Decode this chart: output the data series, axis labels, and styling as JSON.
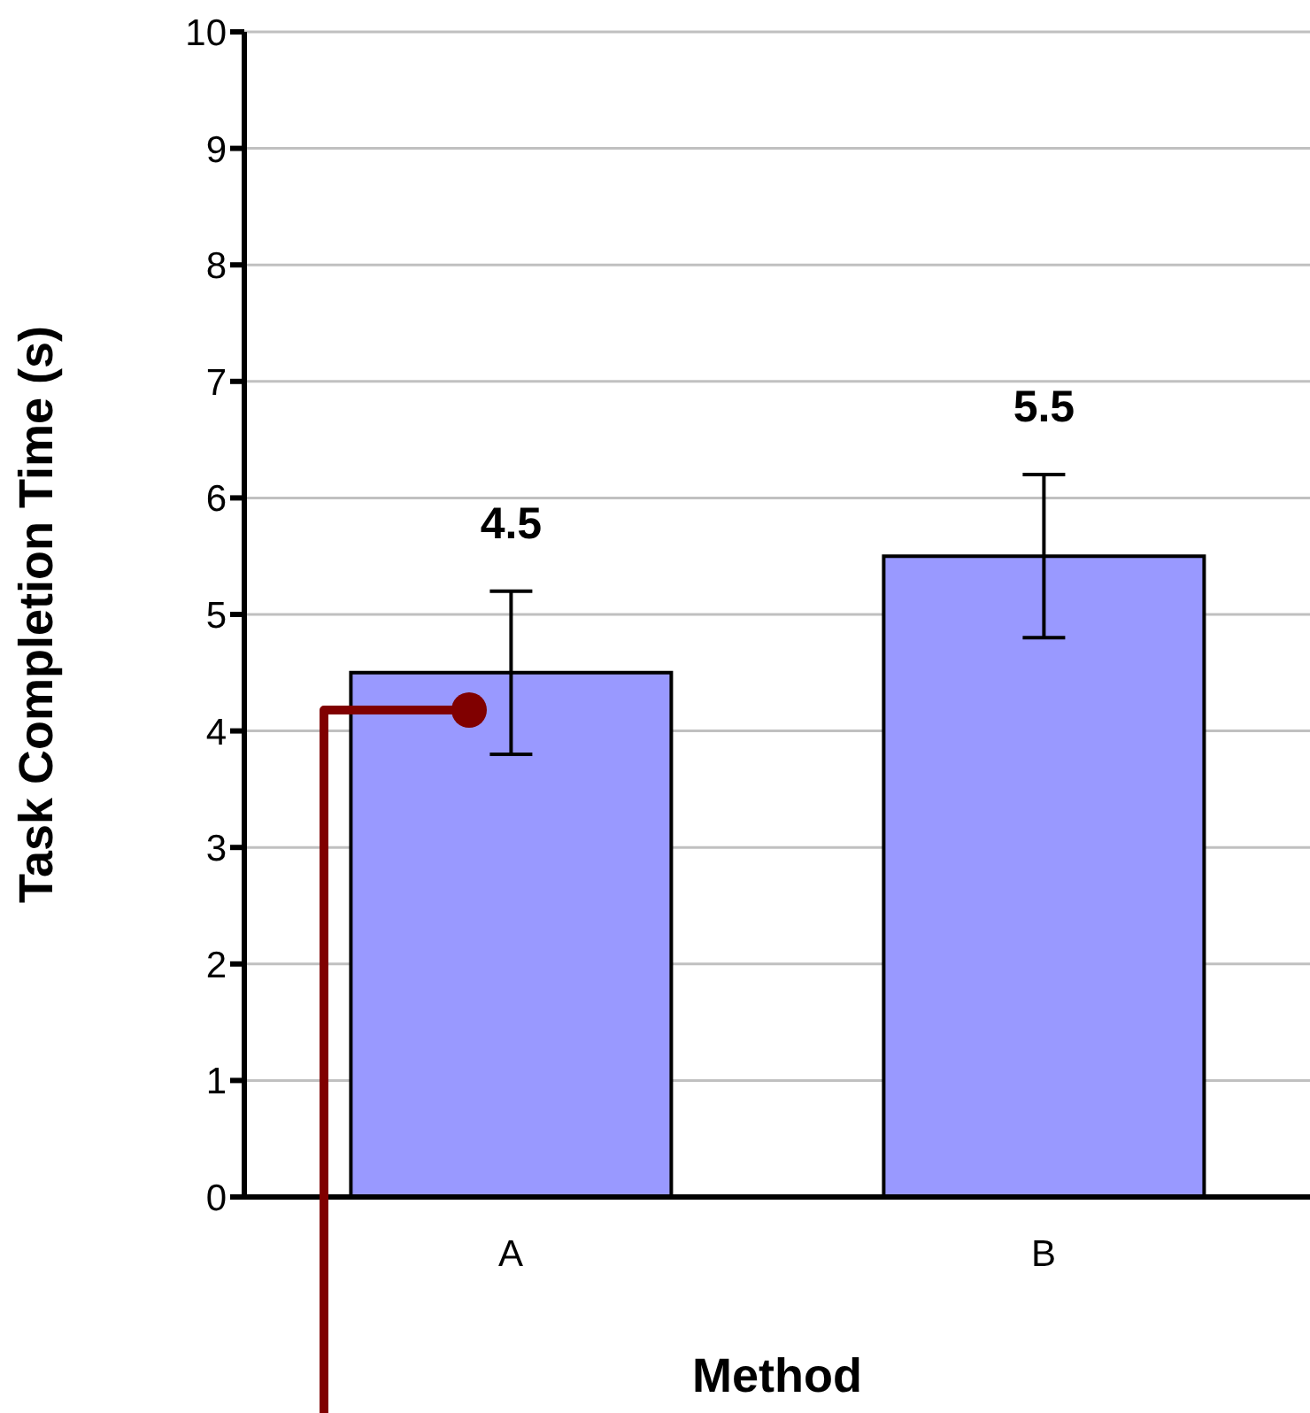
{
  "chart_data": {
    "type": "bar",
    "xlabel": "Method",
    "ylabel": "Task Completion Time (s)",
    "categories": [
      "A",
      "B"
    ],
    "values": [
      4.5,
      5.5
    ],
    "errors": [
      0.7,
      0.7
    ],
    "color": "#9999ff",
    "data_labels": true,
    "ylim": [
      0,
      10
    ],
    "yticks": [
      0,
      1,
      2,
      3,
      4,
      5,
      6,
      7,
      8,
      9,
      10
    ],
    "grid": "y"
  }
}
